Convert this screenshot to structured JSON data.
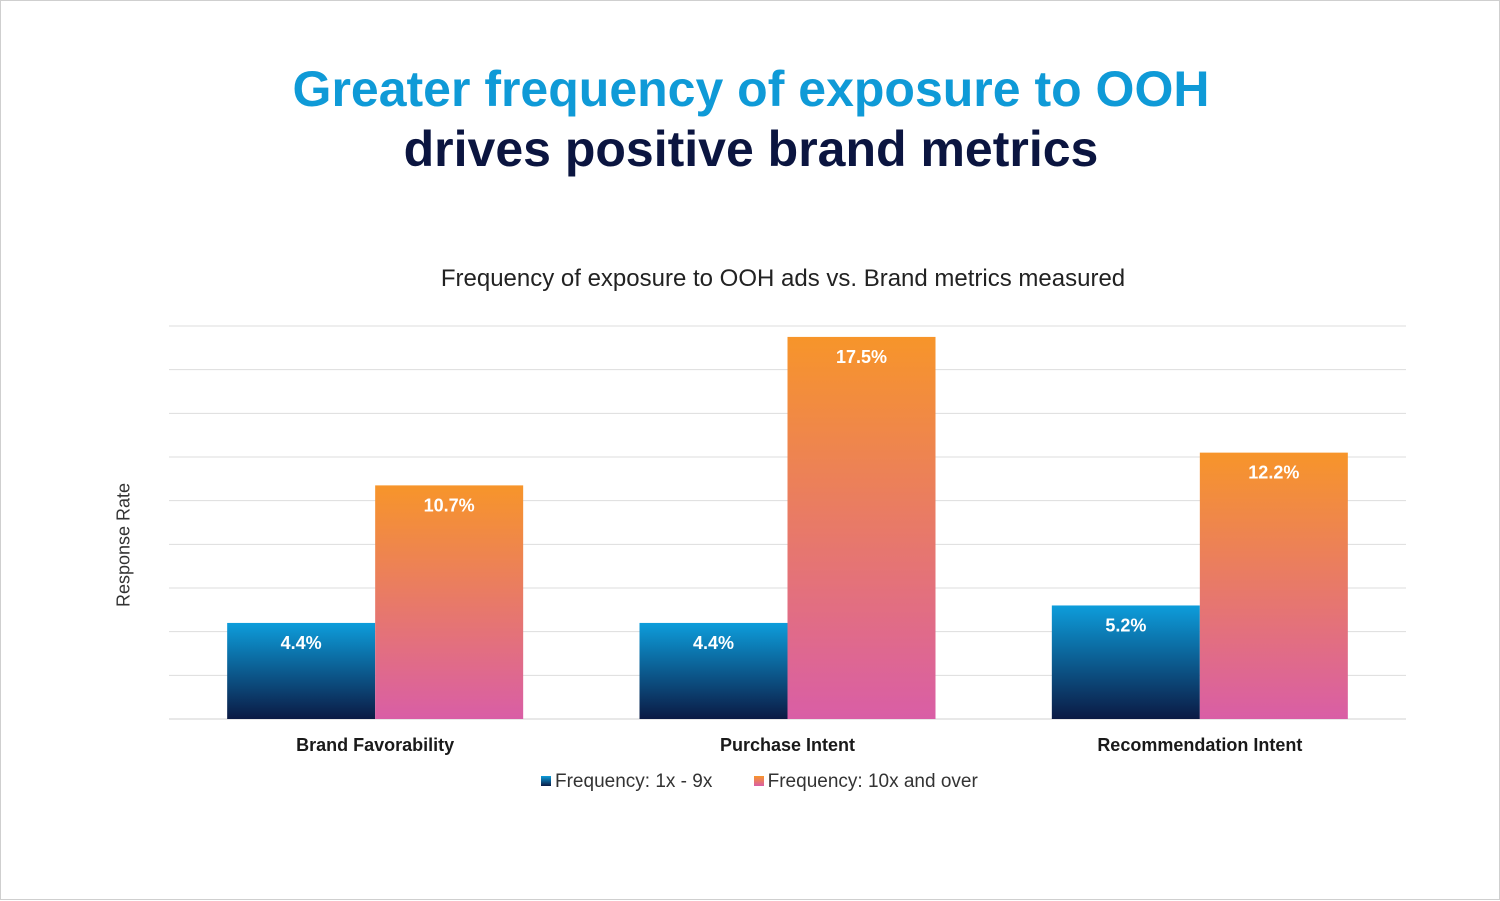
{
  "headline": {
    "line1": "Greater frequency of exposure to OOH",
    "line2": "drives positive brand metrics"
  },
  "chart_data": {
    "type": "bar",
    "title": "Frequency of exposure to OOH ads vs. Brand metrics measured",
    "xlabel": "",
    "ylabel": "Response Rate",
    "ylim": [
      0,
      18
    ],
    "grid": true,
    "categories": [
      "Brand Favorability",
      "Purchase Intent",
      "Recommendation Intent"
    ],
    "series": [
      {
        "name": "Frequency: 1x - 9x",
        "values": [
          4.4,
          4.4,
          5.2
        ],
        "labels": [
          "4.4%",
          "4.4%",
          "5.2%"
        ],
        "color_top": "#0d9ddb",
        "color_bottom": "#0b1a44"
      },
      {
        "name": "Frequency: 10x and over",
        "values": [
          10.7,
          17.5,
          12.2
        ],
        "labels": [
          "10.7%",
          "17.5%",
          "12.2%"
        ],
        "color_top": "#f7952a",
        "color_bottom": "#d95ea6"
      }
    ],
    "legend_position": "bottom"
  }
}
